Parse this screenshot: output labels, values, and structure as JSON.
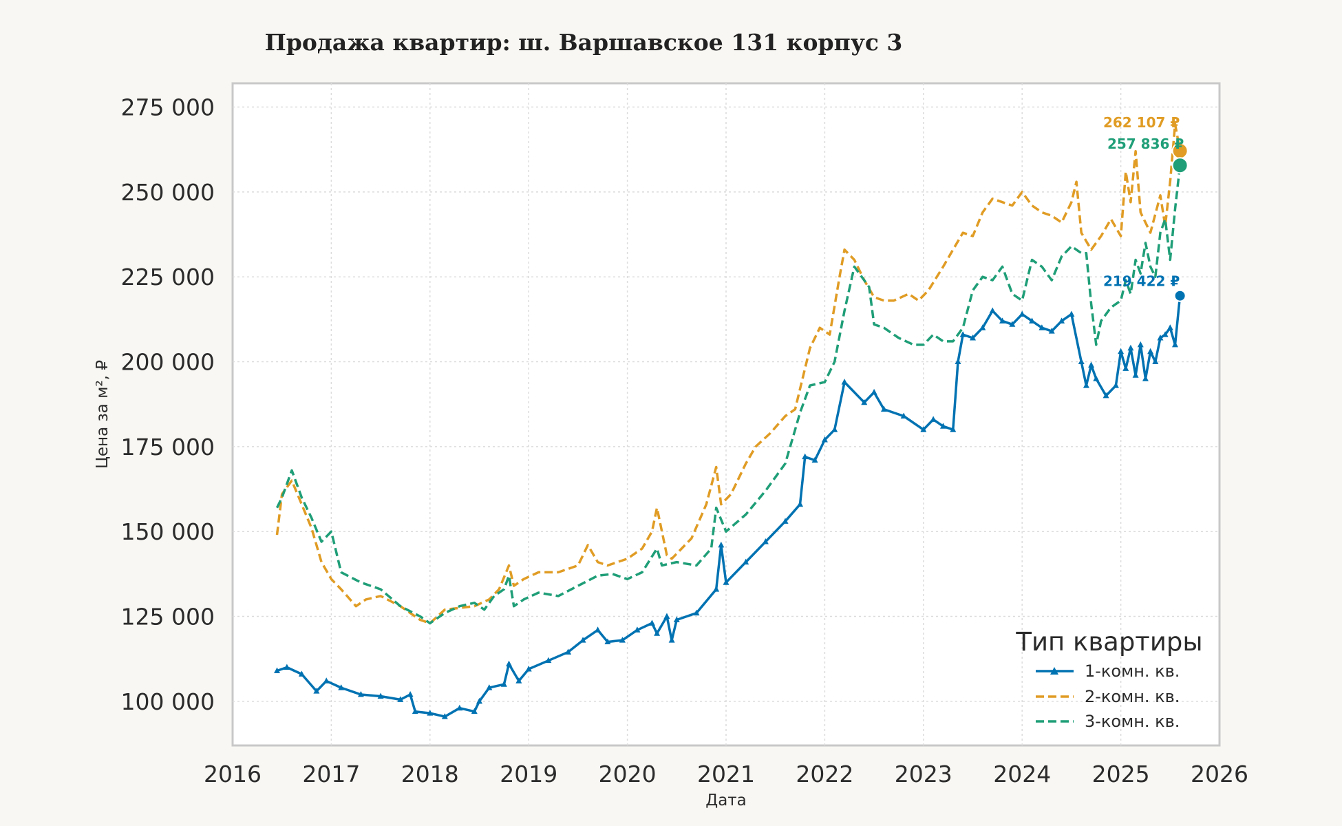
{
  "chart_data": {
    "type": "line",
    "title": "Продажа квартир: ш. Варшавское 131 корпус 3",
    "xlabel": "Дата",
    "ylabel": "Цена за м², ₽",
    "xlim": [
      2016.0,
      2026.0
    ],
    "ylim": [
      87000,
      282000
    ],
    "x_ticks": [
      2016,
      2017,
      2018,
      2019,
      2020,
      2021,
      2022,
      2023,
      2024,
      2025,
      2026
    ],
    "x_tick_labels": [
      "2016",
      "2017",
      "2018",
      "2019",
      "2020",
      "2021",
      "2022",
      "2023",
      "2024",
      "2025",
      "2026"
    ],
    "y_ticks": [
      100000,
      125000,
      150000,
      175000,
      200000,
      225000,
      250000,
      275000
    ],
    "y_tick_labels": [
      "100 000",
      "125 000",
      "150 000",
      "175 000",
      "200 000",
      "225 000",
      "250 000",
      "275 000"
    ],
    "grid": true,
    "legend": {
      "title": "Тип квартиры",
      "placement": "lower-right"
    },
    "series": [
      {
        "name": "1-комн. кв.",
        "color": "#0072b2",
        "style": "solid-triangle-markers",
        "end_label": "219 422 ₽",
        "end_value": 219422,
        "x": [
          2016.45,
          2016.55,
          2016.7,
          2016.85,
          2016.95,
          2017.1,
          2017.3,
          2017.5,
          2017.7,
          2017.8,
          2017.85,
          2018.0,
          2018.15,
          2018.3,
          2018.45,
          2018.5,
          2018.6,
          2018.75,
          2018.8,
          2018.9,
          2019.0,
          2019.2,
          2019.4,
          2019.55,
          2019.7,
          2019.8,
          2019.95,
          2020.1,
          2020.25,
          2020.3,
          2020.4,
          2020.45,
          2020.5,
          2020.7,
          2020.9,
          2020.95,
          2021.0,
          2021.2,
          2021.4,
          2021.6,
          2021.75,
          2021.8,
          2021.9,
          2022.0,
          2022.1,
          2022.2,
          2022.4,
          2022.5,
          2022.6,
          2022.8,
          2023.0,
          2023.1,
          2023.2,
          2023.3,
          2023.35,
          2023.4,
          2023.5,
          2023.6,
          2023.7,
          2023.8,
          2023.9,
          2024.0,
          2024.1,
          2024.2,
          2024.3,
          2024.4,
          2024.5,
          2024.6,
          2024.65,
          2024.7,
          2024.75,
          2024.85,
          2024.95,
          2025.0,
          2025.05,
          2025.1,
          2025.15,
          2025.2,
          2025.25,
          2025.3,
          2025.35,
          2025.4,
          2025.45,
          2025.5,
          2025.55,
          2025.6
        ],
        "y": [
          109000,
          110000,
          108000,
          103000,
          106000,
          104000,
          102000,
          101500,
          100500,
          102000,
          97000,
          96500,
          95500,
          98000,
          97000,
          100000,
          104000,
          105000,
          111000,
          106000,
          109500,
          112000,
          114500,
          118000,
          121000,
          117500,
          118000,
          121000,
          123000,
          120000,
          125000,
          118000,
          124000,
          126000,
          133000,
          146000,
          135000,
          141000,
          147000,
          153000,
          158000,
          172000,
          171000,
          177000,
          180000,
          194000,
          188000,
          191000,
          186000,
          184000,
          180000,
          183000,
          181000,
          180000,
          200000,
          208000,
          207000,
          210000,
          215000,
          212000,
          211000,
          214000,
          212000,
          210000,
          209000,
          212000,
          214000,
          200000,
          193000,
          199000,
          195000,
          190000,
          193000,
          203000,
          198000,
          204000,
          196000,
          205000,
          195000,
          203000,
          200000,
          207000,
          208000,
          210000,
          205000,
          219422
        ]
      },
      {
        "name": "2-комн. кв.",
        "color": "#e09c24",
        "style": "dashed",
        "end_label": "262 107 ₽",
        "end_value": 262107,
        "x": [
          2016.45,
          2016.5,
          2016.6,
          2016.7,
          2016.8,
          2016.9,
          2017.0,
          2017.1,
          2017.25,
          2017.35,
          2017.5,
          2017.7,
          2017.9,
          2018.0,
          2018.15,
          2018.3,
          2018.45,
          2018.6,
          2018.7,
          2018.8,
          2018.85,
          2018.95,
          2019.1,
          2019.3,
          2019.5,
          2019.6,
          2019.7,
          2019.8,
          2019.9,
          2020.0,
          2020.15,
          2020.25,
          2020.3,
          2020.4,
          2020.45,
          2020.55,
          2020.65,
          2020.8,
          2020.9,
          2020.95,
          2021.05,
          2021.2,
          2021.3,
          2021.45,
          2021.6,
          2021.7,
          2021.75,
          2021.85,
          2021.95,
          2022.05,
          2022.15,
          2022.2,
          2022.3,
          2022.4,
          2022.5,
          2022.6,
          2022.7,
          2022.85,
          2022.95,
          2023.05,
          2023.2,
          2023.3,
          2023.4,
          2023.5,
          2023.6,
          2023.7,
          2023.8,
          2023.9,
          2024.0,
          2024.1,
          2024.2,
          2024.3,
          2024.4,
          2024.5,
          2024.55,
          2024.6,
          2024.7,
          2024.8,
          2024.9,
          2025.0,
          2025.05,
          2025.1,
          2025.15,
          2025.2,
          2025.3,
          2025.4,
          2025.45,
          2025.5,
          2025.55,
          2025.6
        ],
        "y": [
          149000,
          161000,
          165000,
          158000,
          151000,
          141000,
          136000,
          133000,
          128000,
          130000,
          131000,
          128000,
          124000,
          123000,
          127000,
          127500,
          128000,
          130000,
          133000,
          140000,
          134000,
          136000,
          138000,
          138000,
          140000,
          146000,
          141000,
          140000,
          141000,
          142000,
          145000,
          150000,
          157000,
          143000,
          142000,
          145000,
          148000,
          158000,
          169000,
          158000,
          161000,
          170000,
          175000,
          179000,
          184000,
          186000,
          192000,
          204000,
          210000,
          208000,
          225000,
          233000,
          230000,
          224000,
          219000,
          218000,
          218000,
          220000,
          218000,
          221000,
          228000,
          233000,
          238000,
          237000,
          244000,
          248000,
          247000,
          246000,
          250000,
          246000,
          244000,
          243000,
          241000,
          247000,
          253000,
          238000,
          233000,
          237000,
          242000,
          237000,
          256000,
          247000,
          262000,
          244000,
          238000,
          249000,
          240000,
          253000,
          270000,
          262107
        ]
      },
      {
        "name": "3-комн. кв.",
        "color": "#1f9e77",
        "style": "dashed",
        "end_label": "257 836 ₽",
        "end_value": 257836,
        "x": [
          2016.45,
          2016.5,
          2016.6,
          2016.7,
          2016.8,
          2016.9,
          2017.0,
          2017.1,
          2017.3,
          2017.5,
          2017.7,
          2017.9,
          2018.0,
          2018.15,
          2018.3,
          2018.45,
          2018.55,
          2018.65,
          2018.75,
          2018.8,
          2018.85,
          2018.95,
          2019.1,
          2019.3,
          2019.5,
          2019.7,
          2019.85,
          2020.0,
          2020.15,
          2020.3,
          2020.35,
          2020.5,
          2020.7,
          2020.85,
          2020.9,
          2021.0,
          2021.2,
          2021.4,
          2021.6,
          2021.7,
          2021.75,
          2021.85,
          2022.0,
          2022.1,
          2022.2,
          2022.3,
          2022.45,
          2022.5,
          2022.6,
          2022.75,
          2022.9,
          2023.0,
          2023.1,
          2023.2,
          2023.3,
          2023.4,
          2023.5,
          2023.6,
          2023.7,
          2023.8,
          2023.9,
          2024.0,
          2024.1,
          2024.2,
          2024.3,
          2024.4,
          2024.5,
          2024.6,
          2024.65,
          2024.7,
          2024.75,
          2024.8,
          2024.9,
          2025.0,
          2025.05,
          2025.1,
          2025.15,
          2025.2,
          2025.25,
          2025.3,
          2025.35,
          2025.4,
          2025.45,
          2025.5,
          2025.55,
          2025.6
        ],
        "y": [
          157000,
          160000,
          168000,
          160000,
          154000,
          147000,
          150000,
          138000,
          135000,
          133000,
          128000,
          125000,
          123000,
          126000,
          128000,
          129000,
          127000,
          131000,
          133000,
          137000,
          128000,
          130000,
          132000,
          131000,
          134000,
          137000,
          137500,
          136000,
          138000,
          145000,
          140000,
          141000,
          140000,
          145000,
          157000,
          150000,
          155000,
          162000,
          170000,
          180000,
          185000,
          193000,
          194000,
          200000,
          215000,
          228000,
          222000,
          211000,
          210000,
          207000,
          205000,
          205000,
          208000,
          206000,
          206000,
          210000,
          221000,
          225000,
          224000,
          228000,
          220000,
          218000,
          230000,
          228000,
          224000,
          231000,
          234000,
          232000,
          232000,
          217000,
          205000,
          212000,
          216000,
          218000,
          224000,
          220000,
          230000,
          226000,
          235000,
          228000,
          225000,
          238000,
          242000,
          230000,
          245000,
          257836
        ]
      }
    ]
  }
}
